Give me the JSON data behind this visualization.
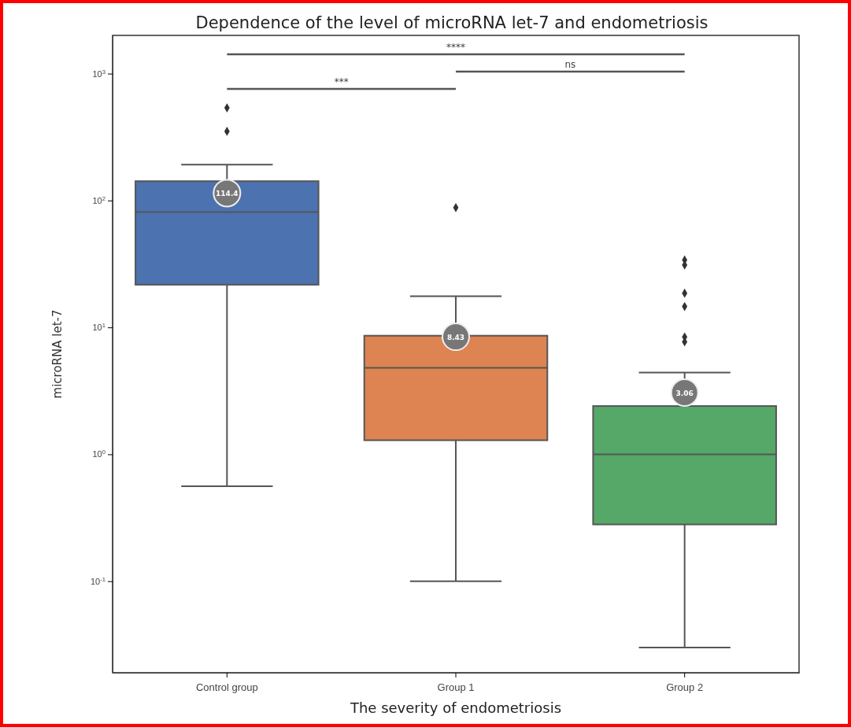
{
  "chart_data": {
    "type": "box",
    "title": "Dependence of the level of microRNA let-7 and endometriosis",
    "xlabel": "The severity of endometriosis",
    "ylabel": "microRNA let-7",
    "categories": [
      "Control group",
      "Group 1",
      "Group 2"
    ],
    "colors": [
      "#4c72b0",
      "#dd8452",
      "#55a868"
    ],
    "boxes": [
      {
        "low": 0.56,
        "q1": 21.7,
        "median": 81,
        "q3": 142,
        "high": 192,
        "mean": 114.4,
        "outliers": [
          537,
          351
        ]
      },
      {
        "low": 0.1,
        "q1": 1.29,
        "median": 4.8,
        "q3": 8.6,
        "high": 17.6,
        "mean": 8.43,
        "outliers": [
          88
        ]
      },
      {
        "low": 0.03,
        "q1": 0.28,
        "median": 1.0,
        "q3": 2.4,
        "high": 4.4,
        "mean": 3.06,
        "outliers": [
          34,
          31,
          18.6,
          14.6,
          8.4,
          7.7
        ]
      }
    ],
    "log": true,
    "ylim": [
      0.019,
      2000
    ],
    "yticks": [
      {
        "value": 0.1,
        "label": "10$^{-1}$"
      },
      {
        "value": 1,
        "label": "10$^{0}$"
      },
      {
        "value": 10,
        "label": "10$^{1}$"
      },
      {
        "value": 100,
        "label": "10$^{2}$"
      },
      {
        "value": 1000,
        "label": "10$^{3}$"
      }
    ],
    "grid": false,
    "annotations": [
      "****",
      "ns",
      "***",
      "114.4",
      "8.43",
      "3.06"
    ]
  }
}
